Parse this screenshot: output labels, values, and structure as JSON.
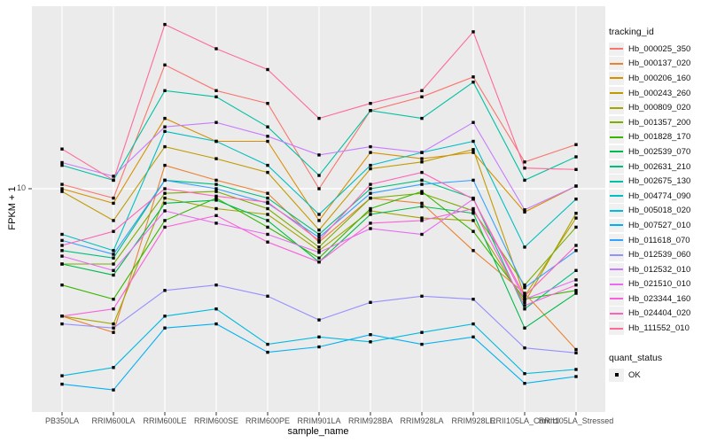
{
  "chart_data": {
    "type": "line",
    "title": "",
    "xlabel": "sample_name",
    "ylabel": "FPKM + 1",
    "y_scale": "log10",
    "y_tick_labels": [
      "10"
    ],
    "grid": true,
    "panel_bg": "#EBEBEB",
    "grid_color": "#FFFFFF",
    "marker_color": "#000000",
    "marker_shape": "square",
    "axis_text_color": "#4D4D4D",
    "legend_position": "right",
    "categories": [
      "PB350LA",
      "RRIM600LA",
      "RRIM600LE",
      "RRIM600SE",
      "RRIM600PE",
      "RRIM901LA",
      "RRIM928BA",
      "RRIM928LA",
      "RRIM928LE",
      "RRII105LA_Control",
      "RRII105LA_Stressed"
    ],
    "series": [
      {
        "name": "Hb_000025_350",
        "color": "#F8766D",
        "values": [
          10.5,
          9.0,
          40,
          30,
          26,
          10.0,
          24,
          28,
          35,
          13.5,
          16.4
        ]
      },
      {
        "name": "Hb_000137_020",
        "color": "#EA8331",
        "values": [
          2.4,
          2.0,
          13,
          11,
          9.5,
          5.5,
          9.0,
          8.5,
          5.0,
          3.1,
          1.65
        ]
      },
      {
        "name": "Hb_000206_160",
        "color": "#D89000",
        "values": [
          10.0,
          8.5,
          22,
          17,
          17,
          7.0,
          15,
          14,
          15,
          7.7,
          10.3
        ]
      },
      {
        "name": "Hb_000243_260",
        "color": "#C09B00",
        "values": [
          9.7,
          7.0,
          16,
          14,
          12,
          6.3,
          12.5,
          13.5,
          15.5,
          3.0,
          7.2
        ]
      },
      {
        "name": "Hb_000809_020",
        "color": "#A3A500",
        "values": [
          2.4,
          2.2,
          9.0,
          8.0,
          7.5,
          5.0,
          7.8,
          7.2,
          7.0,
          2.8,
          7.6
        ]
      },
      {
        "name": "Hb_001357_200",
        "color": "#7CAE00",
        "values": [
          4.3,
          4.3,
          9.5,
          9.7,
          8.0,
          5.2,
          9.0,
          9.5,
          7.8,
          3.4,
          6.5
        ]
      },
      {
        "name": "Hb_001828_170",
        "color": "#39B600",
        "values": [
          3.4,
          2.9,
          7.0,
          9.0,
          6.5,
          4.6,
          8.0,
          9.7,
          6.2,
          2.9,
          3.2
        ]
      },
      {
        "name": "Hb_002539_070",
        "color": "#00BB4E",
        "values": [
          4.3,
          3.8,
          8.5,
          8.8,
          7.0,
          4.4,
          7.5,
          8.2,
          7.6,
          2.1,
          3.1
        ]
      },
      {
        "name": "Hb_002631_210",
        "color": "#00BF7D",
        "values": [
          5.0,
          4.6,
          11,
          10.5,
          9.0,
          6.0,
          10,
          11,
          9.0,
          2.6,
          4.0
        ]
      },
      {
        "name": "Hb_002675_130",
        "color": "#00C1A3",
        "values": [
          13.0,
          11.0,
          30,
          28,
          20,
          11.6,
          24,
          22,
          33,
          11.0,
          14.3
        ]
      },
      {
        "name": "Hb_004774_090",
        "color": "#00BFC4",
        "values": [
          6.0,
          5.0,
          19,
          17,
          13,
          7.5,
          13,
          15,
          17,
          5.2,
          8.9
        ]
      },
      {
        "name": "Hb_005018_020",
        "color": "#00BAE0",
        "values": [
          1.23,
          1.35,
          2.4,
          2.6,
          1.75,
          1.9,
          1.8,
          2.0,
          2.2,
          1.26,
          1.32
        ]
      },
      {
        "name": "Hb_007527_010",
        "color": "#00B0F6",
        "values": [
          1.12,
          1.05,
          2.1,
          2.2,
          1.6,
          1.7,
          1.95,
          1.75,
          1.9,
          1.13,
          1.22
        ]
      },
      {
        "name": "Hb_011618_070",
        "color": "#35A2FF",
        "values": [
          5.6,
          4.8,
          11,
          10,
          8.5,
          5.8,
          9.5,
          10.5,
          11,
          3.3,
          5.0
        ]
      },
      {
        "name": "Hb_012539_060",
        "color": "#9590FF",
        "values": [
          2.2,
          2.1,
          3.2,
          3.4,
          3.0,
          2.3,
          2.8,
          3.0,
          2.9,
          1.68,
          1.59
        ]
      },
      {
        "name": "Hb_012532_010",
        "color": "#C77CFF",
        "values": [
          13.4,
          11.5,
          20,
          21,
          18,
          14.6,
          16,
          15,
          21,
          7.9,
          10.3
        ]
      },
      {
        "name": "Hb_021510_010",
        "color": "#E76BF3",
        "values": [
          4.7,
          4.0,
          7.8,
          6.8,
          6.0,
          4.9,
          6.4,
          6.0,
          8.9,
          2.9,
          3.6
        ]
      },
      {
        "name": "Hb_023344_160",
        "color": "#FA62DB",
        "values": [
          2.4,
          2.6,
          6.5,
          7.4,
          5.5,
          4.4,
          6.8,
          7.0,
          8.0,
          2.7,
          3.4
        ]
      },
      {
        "name": "Hb_024404_020",
        "color": "#FF62BC",
        "values": [
          5.3,
          6.2,
          10,
          9.2,
          8.6,
          5.6,
          10.5,
          12,
          8.9,
          3.0,
          5.3
        ]
      },
      {
        "name": "Hb_111552_010",
        "color": "#FF6A98",
        "values": [
          15.6,
          11.0,
          63,
          48,
          38,
          22,
          26,
          30,
          58,
          12.6,
          12.4
        ]
      }
    ],
    "legend": {
      "tracking_title": "tracking_id",
      "quant_title": "quant_status",
      "quant_items": [
        {
          "label": "OK",
          "marker": "black-square"
        }
      ]
    }
  }
}
